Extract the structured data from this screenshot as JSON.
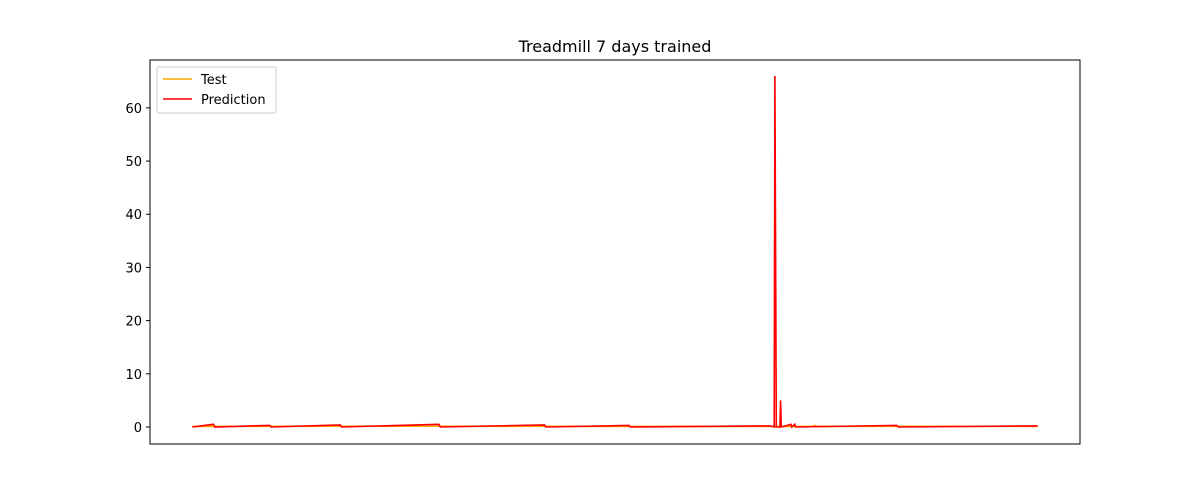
{
  "chart_data": {
    "type": "line",
    "title": "Treadmill 7 days trained",
    "xlabel": "",
    "ylabel": "",
    "xlim": [
      -60,
      1260
    ],
    "ylim": [
      -3.2,
      69.0
    ],
    "x_ticks_shown": false,
    "yticks": [
      0,
      10,
      20,
      30,
      40,
      50,
      60
    ],
    "ytick_labels": [
      "0",
      "10",
      "20",
      "30",
      "40",
      "50",
      "60"
    ],
    "grid": false,
    "legend": {
      "placement": "upper-left",
      "entries": [
        "Test",
        "Prediction"
      ]
    },
    "series": [
      {
        "name": "Test",
        "color": "#FFA500",
        "points": [
          [
            0,
            0.1
          ],
          [
            300,
            0.15
          ],
          [
            600,
            0.1
          ],
          [
            880,
            0.1
          ],
          [
            883,
            0.3
          ],
          [
            886,
            0.1
          ],
          [
            1000,
            0.12
          ],
          [
            1200,
            0.1
          ]
        ]
      },
      {
        "name": "Prediction",
        "color": "#FF0000",
        "points": [
          [
            0,
            0.0
          ],
          [
            30,
            0.5
          ],
          [
            32,
            0.0
          ],
          [
            110,
            0.3
          ],
          [
            112,
            0.0
          ],
          [
            210,
            0.4
          ],
          [
            212,
            0.0
          ],
          [
            350,
            0.5
          ],
          [
            352,
            0.0
          ],
          [
            500,
            0.4
          ],
          [
            502,
            0.0
          ],
          [
            620,
            0.3
          ],
          [
            622,
            0.0
          ],
          [
            820,
            0.2
          ],
          [
            826,
            0.0
          ],
          [
            827,
            66.0
          ],
          [
            829,
            0.0
          ],
          [
            834,
            0.0
          ],
          [
            835,
            5.0
          ],
          [
            836,
            0.0
          ],
          [
            850,
            0.5
          ],
          [
            851,
            0.0
          ],
          [
            855,
            0.5
          ],
          [
            856,
            0.0
          ],
          [
            1000,
            0.3
          ],
          [
            1002,
            0.0
          ],
          [
            1200,
            0.2
          ]
        ]
      }
    ]
  }
}
